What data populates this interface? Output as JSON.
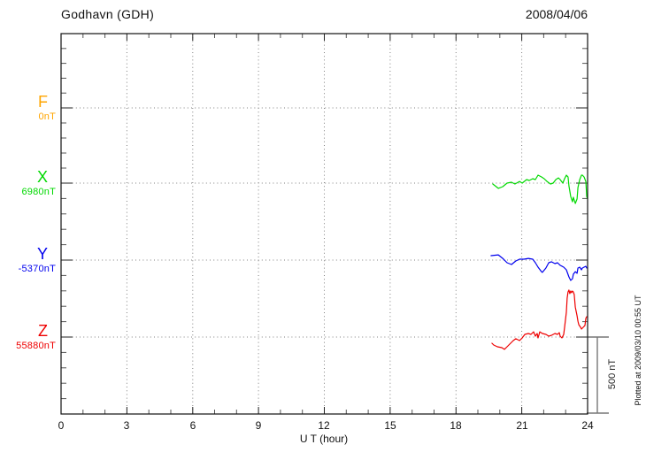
{
  "header": {
    "station": "Godhavn (GDH)",
    "date": "2008/04/06"
  },
  "xaxis": {
    "label": "U T (hour)",
    "ticks": [
      "0",
      "3",
      "6",
      "9",
      "12",
      "15",
      "18",
      "21",
      "24"
    ]
  },
  "components": [
    {
      "label": "F",
      "baseline_label": "0nT",
      "baseline_value_nT": 0,
      "color": "#FFA500"
    },
    {
      "label": "X",
      "baseline_label": "6980nT",
      "baseline_value_nT": 6980,
      "color": "#00D900"
    },
    {
      "label": "Y",
      "baseline_label": "-5370nT",
      "baseline_value_nT": -5370,
      "color": "#0000EE"
    },
    {
      "label": "Z",
      "baseline_label": "55880nT",
      "baseline_value_nT": 55880,
      "color": "#EE0000"
    }
  ],
  "scale_bar": {
    "label": "500 nT",
    "span_nT": 500
  },
  "footnote": "Plotted at 2009/03/10 00:55 UT",
  "chart_data": {
    "type": "line",
    "title": "Godhavn (GDH) magnetogram",
    "date": "2008/04/06",
    "xlabel": "U T (hour)",
    "xlim": [
      0,
      24
    ],
    "x_major_ticks": [
      0,
      3,
      6,
      9,
      12,
      15,
      18,
      21,
      24
    ],
    "grid": "dotted vertical lines every 3 hours; dotted horizontal baselines per component",
    "scale_nT_per_division": 500,
    "note": "values are offsets in nT from each component baseline; data present only ~19.6-24 UT",
    "series": [
      {
        "name": "F",
        "baseline_nT": 0,
        "color": "#FFA500",
        "points": []
      },
      {
        "name": "X",
        "baseline_nT": 6980,
        "color": "#00D900",
        "points": [
          [
            19.68,
            -6
          ],
          [
            19.93,
            -34
          ],
          [
            20.13,
            -23
          ],
          [
            20.33,
            0
          ],
          [
            20.53,
            6
          ],
          [
            20.69,
            -6
          ],
          [
            20.9,
            11
          ],
          [
            21.02,
            0
          ],
          [
            21.22,
            23
          ],
          [
            21.34,
            17
          ],
          [
            21.5,
            29
          ],
          [
            21.62,
            23
          ],
          [
            21.74,
            52
          ],
          [
            21.9,
            40
          ],
          [
            22.02,
            29
          ],
          [
            22.15,
            11
          ],
          [
            22.31,
            -6
          ],
          [
            22.43,
            0
          ],
          [
            22.55,
            23
          ],
          [
            22.67,
            34
          ],
          [
            22.75,
            23
          ],
          [
            22.87,
            0
          ],
          [
            22.95,
            29
          ],
          [
            23.03,
            52
          ],
          [
            23.11,
            40
          ],
          [
            23.15,
            -17
          ],
          [
            23.23,
            -86
          ],
          [
            23.31,
            -121
          ],
          [
            23.35,
            -92
          ],
          [
            23.44,
            -132
          ],
          [
            23.52,
            -103
          ],
          [
            23.56,
            -29
          ],
          [
            23.64,
            23
          ],
          [
            23.72,
            52
          ],
          [
            23.76,
            52
          ],
          [
            23.84,
            40
          ],
          [
            23.92,
            11
          ],
          [
            23.96,
            -86
          ],
          [
            24,
            -103
          ]
        ]
      },
      {
        "name": "Y",
        "baseline_nT": -5370,
        "color": "#0000EE",
        "points": [
          [
            19.6,
            29
          ],
          [
            19.93,
            34
          ],
          [
            20.13,
            11
          ],
          [
            20.33,
            -17
          ],
          [
            20.53,
            -29
          ],
          [
            20.73,
            -6
          ],
          [
            20.9,
            6
          ],
          [
            21.1,
            6
          ],
          [
            21.3,
            11
          ],
          [
            21.5,
            6
          ],
          [
            21.62,
            -17
          ],
          [
            21.74,
            -46
          ],
          [
            21.9,
            -75
          ],
          [
            21.94,
            -80
          ],
          [
            22.1,
            -52
          ],
          [
            22.23,
            -17
          ],
          [
            22.35,
            -11
          ],
          [
            22.51,
            -23
          ],
          [
            22.63,
            -17
          ],
          [
            22.75,
            -34
          ],
          [
            22.91,
            -46
          ],
          [
            23.03,
            -63
          ],
          [
            23.15,
            -109
          ],
          [
            23.23,
            -132
          ],
          [
            23.31,
            -121
          ],
          [
            23.35,
            -92
          ],
          [
            23.44,
            -75
          ],
          [
            23.52,
            -86
          ],
          [
            23.56,
            -52
          ],
          [
            23.64,
            -46
          ],
          [
            23.72,
            -63
          ],
          [
            23.76,
            -52
          ],
          [
            23.92,
            -40
          ],
          [
            23.96,
            -52
          ]
        ]
      },
      {
        "name": "Z",
        "baseline_nT": 55880,
        "color": "#EE0000",
        "points": [
          [
            19.64,
            -40
          ],
          [
            19.72,
            -52
          ],
          [
            19.89,
            -63
          ],
          [
            20.09,
            -69
          ],
          [
            20.21,
            -80
          ],
          [
            20.33,
            -63
          ],
          [
            20.49,
            -40
          ],
          [
            20.61,
            -23
          ],
          [
            20.73,
            -11
          ],
          [
            20.9,
            -23
          ],
          [
            21.02,
            -6
          ],
          [
            21.14,
            17
          ],
          [
            21.3,
            23
          ],
          [
            21.42,
            17
          ],
          [
            21.54,
            34
          ],
          [
            21.62,
            6
          ],
          [
            21.7,
            23
          ],
          [
            21.74,
            -6
          ],
          [
            21.82,
            34
          ],
          [
            21.94,
            23
          ],
          [
            22.1,
            17
          ],
          [
            22.23,
            6
          ],
          [
            22.35,
            11
          ],
          [
            22.51,
            23
          ],
          [
            22.63,
            17
          ],
          [
            22.71,
            29
          ],
          [
            22.75,
            6
          ],
          [
            22.83,
            -6
          ],
          [
            22.91,
            17
          ],
          [
            22.95,
            63
          ],
          [
            23.03,
            161
          ],
          [
            23.07,
            253
          ],
          [
            23.11,
            293
          ],
          [
            23.15,
            305
          ],
          [
            23.19,
            282
          ],
          [
            23.23,
            299
          ],
          [
            23.27,
            288
          ],
          [
            23.31,
            299
          ],
          [
            23.35,
            293
          ],
          [
            23.39,
            276
          ],
          [
            23.44,
            195
          ],
          [
            23.52,
            138
          ],
          [
            23.56,
            103
          ],
          [
            23.6,
            80
          ],
          [
            23.68,
            63
          ],
          [
            23.72,
            52
          ],
          [
            23.8,
            63
          ],
          [
            23.88,
            75
          ],
          [
            23.92,
            121
          ],
          [
            23.96,
            132
          ]
        ]
      }
    ]
  }
}
